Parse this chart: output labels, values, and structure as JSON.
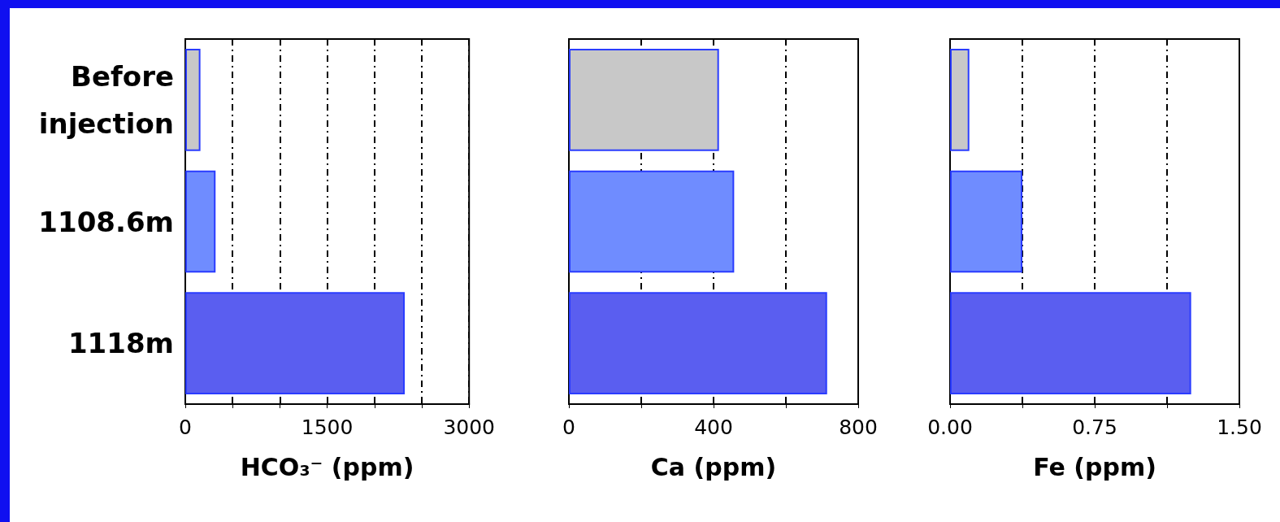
{
  "chart_data": [
    {
      "type": "bar",
      "orientation": "horizontal",
      "categories": [
        "Before\ninjection",
        "1108.6m",
        "1118m"
      ],
      "values": [
        160,
        320,
        2320
      ],
      "colors": [
        "#c8c8c8",
        "#6f8cff",
        "#5a5ef0"
      ],
      "xlabel": "HCO₃⁻ (ppm)",
      "xlim": [
        0,
        3000
      ],
      "xticks": [
        0,
        {
          "value": 500,
          "label": null
        },
        {
          "value": 1000,
          "label": null
        },
        1500,
        {
          "value": 2000,
          "label": null
        },
        {
          "value": 2500,
          "label": null
        },
        3000
      ],
      "grid": "x",
      "line_style": "dashed"
    },
    {
      "type": "bar",
      "orientation": "horizontal",
      "categories": [
        null,
        null,
        null
      ],
      "values": [
        415,
        457,
        714
      ],
      "colors": [
        "#c8c8c8",
        "#6f8cff",
        "#5a5ef0"
      ],
      "xlabel": "Ca (ppm)",
      "xlim": [
        0,
        800
      ],
      "xticks": [
        0,
        {
          "value": 200,
          "label": null
        },
        400,
        {
          "value": 600,
          "label": null
        },
        800
      ],
      "grid": "x",
      "line_style": "dashed",
      "tick_labels": "x"
    },
    {
      "type": "bar",
      "orientation": "horizontal",
      "categories": [
        null,
        null,
        null
      ],
      "values": [
        0.1,
        0.375,
        1.25
      ],
      "colors": [
        "#c8c8c8",
        "#6f8cff",
        "#5a5ef0"
      ],
      "xlabel": "Fe (ppm)",
      "xlim": [
        0,
        1.5
      ],
      "xticks": [
        {
          "value": 0,
          "label": "0.00"
        },
        {
          "value": 0.375,
          "label": null
        },
        0.75,
        {
          "value": 1.125,
          "label": null
        },
        {
          "value": 1.5,
          "label": "1.50"
        }
      ],
      "grid": "x",
      "line_style": "dashed",
      "tick_labels": "x"
    }
  ]
}
